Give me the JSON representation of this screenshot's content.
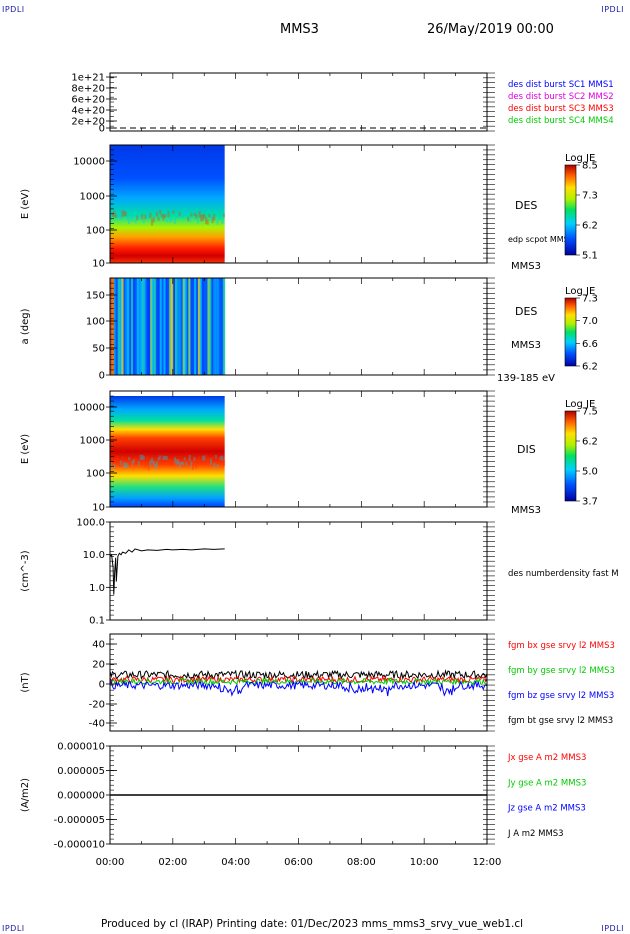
{
  "header": {
    "corner_tl": "IPDLI",
    "corner_tr": "IPDLI",
    "corner_bl": "IPDLI",
    "corner_br": "IPDLI",
    "spacecraft": "MMS3",
    "date": "26/May/2019 00:00"
  },
  "footer": {
    "text": "Produced by cl (IRAP)   Printing date: 01/Dec/2023   mms_mms3_srvy_vue_web1.cl"
  },
  "colors": {
    "blue": "#0000ff",
    "magenta": "#e000e0",
    "red": "#ff0000",
    "green": "#00cc00",
    "black": "#000000"
  },
  "chart_data": [
    {
      "type": "line",
      "id": "panel-dist-burst",
      "ylabel": "",
      "yticks": [
        "1e+21",
        "8e+20",
        "6e+20",
        "4e+20",
        "2e+20",
        "0"
      ],
      "ylim": [
        0,
        1.1e+21
      ],
      "legend": [
        {
          "label": "des dist burst SC1 MMS1",
          "color": "#0000ff"
        },
        {
          "label": "des dist burst SC2 MMS2",
          "color": "#e000e0"
        },
        {
          "label": "des dist burst SC3 MMS3",
          "color": "#ff0000"
        },
        {
          "label": "des dist burst SC4 MMS4",
          "color": "#00cc00"
        }
      ],
      "series": [
        {
          "values_hours": [
            0,
            12
          ],
          "values": [
            0,
            0
          ],
          "style": "dashed"
        }
      ]
    },
    {
      "type": "heatmap",
      "id": "panel-des-energy",
      "ylabel": "E (eV)",
      "yscale": "log",
      "ylim": [
        10,
        30000
      ],
      "yticks": [
        "10000",
        "1000",
        "100",
        "10"
      ],
      "right_labels": [
        "DES",
        "edp scpot MMS3",
        "MMS3"
      ],
      "colorbar": {
        "title": "Log JE",
        "ticks": [
          "8.5",
          "7.3",
          "6.2",
          "5.1"
        ],
        "range": [
          5.1,
          8.5
        ]
      },
      "data_end_hour": 3.65
    },
    {
      "type": "heatmap",
      "id": "panel-des-pitch",
      "ylabel": "a (deg)",
      "ylim": [
        0,
        180
      ],
      "yticks": [
        "150",
        "100",
        "50",
        "0"
      ],
      "right_labels": [
        "DES",
        "MMS3",
        "139-185 eV"
      ],
      "colorbar": {
        "title": "Log JE",
        "ticks": [
          "7.3",
          "7.0",
          "6.6",
          "6.2"
        ],
        "range": [
          6.2,
          7.3
        ]
      },
      "data_end_hour": 3.65
    },
    {
      "type": "heatmap",
      "id": "panel-dis-energy",
      "ylabel": "E (eV)",
      "yscale": "log",
      "ylim": [
        10,
        30000
      ],
      "yticks": [
        "10000",
        "1000",
        "100",
        "10"
      ],
      "right_labels": [
        "DIS",
        "MMS3"
      ],
      "colorbar": {
        "title": "Log JE",
        "ticks": [
          "7.5",
          "6.2",
          "5.0",
          "3.7"
        ],
        "range": [
          3.7,
          7.5
        ]
      },
      "data_end_hour": 3.65
    },
    {
      "type": "line",
      "id": "panel-density",
      "ylabel": "(cm^-3)",
      "yscale": "log",
      "ylim": [
        0.1,
        100
      ],
      "yticks": [
        "100.0",
        "10.0",
        "1.0",
        "0.1"
      ],
      "legend": [
        {
          "label": "des numberdensity fast M",
          "color": "#000000"
        }
      ],
      "series": [
        {
          "name": "des numberdensity fast M",
          "x_hours": [
            0.0,
            0.05,
            0.1,
            0.12,
            0.15,
            0.18,
            0.2,
            0.25,
            0.3,
            0.35,
            0.4,
            0.5,
            0.6,
            0.7,
            0.8,
            1.0,
            1.2,
            1.5,
            1.8,
            2.0,
            2.3,
            2.6,
            3.0,
            3.3,
            3.65
          ],
          "values": [
            9.0,
            10.0,
            4.0,
            0.6,
            3.0,
            8.0,
            1.5,
            9.0,
            11.0,
            10.0,
            12.0,
            11.0,
            14.0,
            12.0,
            15.0,
            13.0,
            14.0,
            13.5,
            14.5,
            14.0,
            14.5,
            14.0,
            15.0,
            14.5,
            15.0
          ]
        }
      ]
    },
    {
      "type": "line",
      "id": "panel-bfield",
      "ylabel": "(nT)",
      "ylim": [
        -50,
        50
      ],
      "yticks": [
        "40",
        "20",
        "0",
        "-20",
        "-40"
      ],
      "legend": [
        {
          "label": "fgm bx gse srvy l2 MMS3",
          "color": "#ff0000"
        },
        {
          "label": "fgm by gse srvy l2 MMS3",
          "color": "#00cc00"
        },
        {
          "label": "fgm bz gse srvy l2 MMS3",
          "color": "#0000ff"
        },
        {
          "label": "fgm bt gse srvy l2 MMS3",
          "color": "#000000"
        }
      ],
      "series": [
        {
          "name": "bt",
          "color": "#000000",
          "baseline": 8,
          "spread": 4
        },
        {
          "name": "bx",
          "color": "#ff0000",
          "baseline": 3,
          "spread": 3
        },
        {
          "name": "by",
          "color": "#00cc00",
          "baseline": 1,
          "spread": 3
        },
        {
          "name": "bz",
          "color": "#0000ff",
          "baseline": -3,
          "spread": 4
        }
      ]
    },
    {
      "type": "line",
      "id": "panel-current",
      "ylabel": "(A/m2)",
      "ylim": [
        -1e-05,
        1e-05
      ],
      "yticks": [
        "0.000010",
        "0.000005",
        "0.000000",
        "-0.000005",
        "-0.000010"
      ],
      "legend": [
        {
          "label": "Jx gse A m2 MMS3",
          "color": "#ff0000"
        },
        {
          "label": "Jy gse A m2 MMS3",
          "color": "#00cc00"
        },
        {
          "label": "Jz gse A m2 MMS3",
          "color": "#0000ff"
        },
        {
          "label": "J A m2 MMS3",
          "color": "#000000"
        }
      ],
      "series": [
        {
          "name": "J",
          "values_hours": [
            0,
            12
          ],
          "values": [
            0,
            0
          ]
        }
      ]
    }
  ],
  "xaxis": {
    "ticks": [
      "00:00",
      "02:00",
      "04:00",
      "06:00",
      "08:00",
      "10:00",
      "12:00"
    ],
    "range_hours": [
      0,
      12
    ]
  }
}
